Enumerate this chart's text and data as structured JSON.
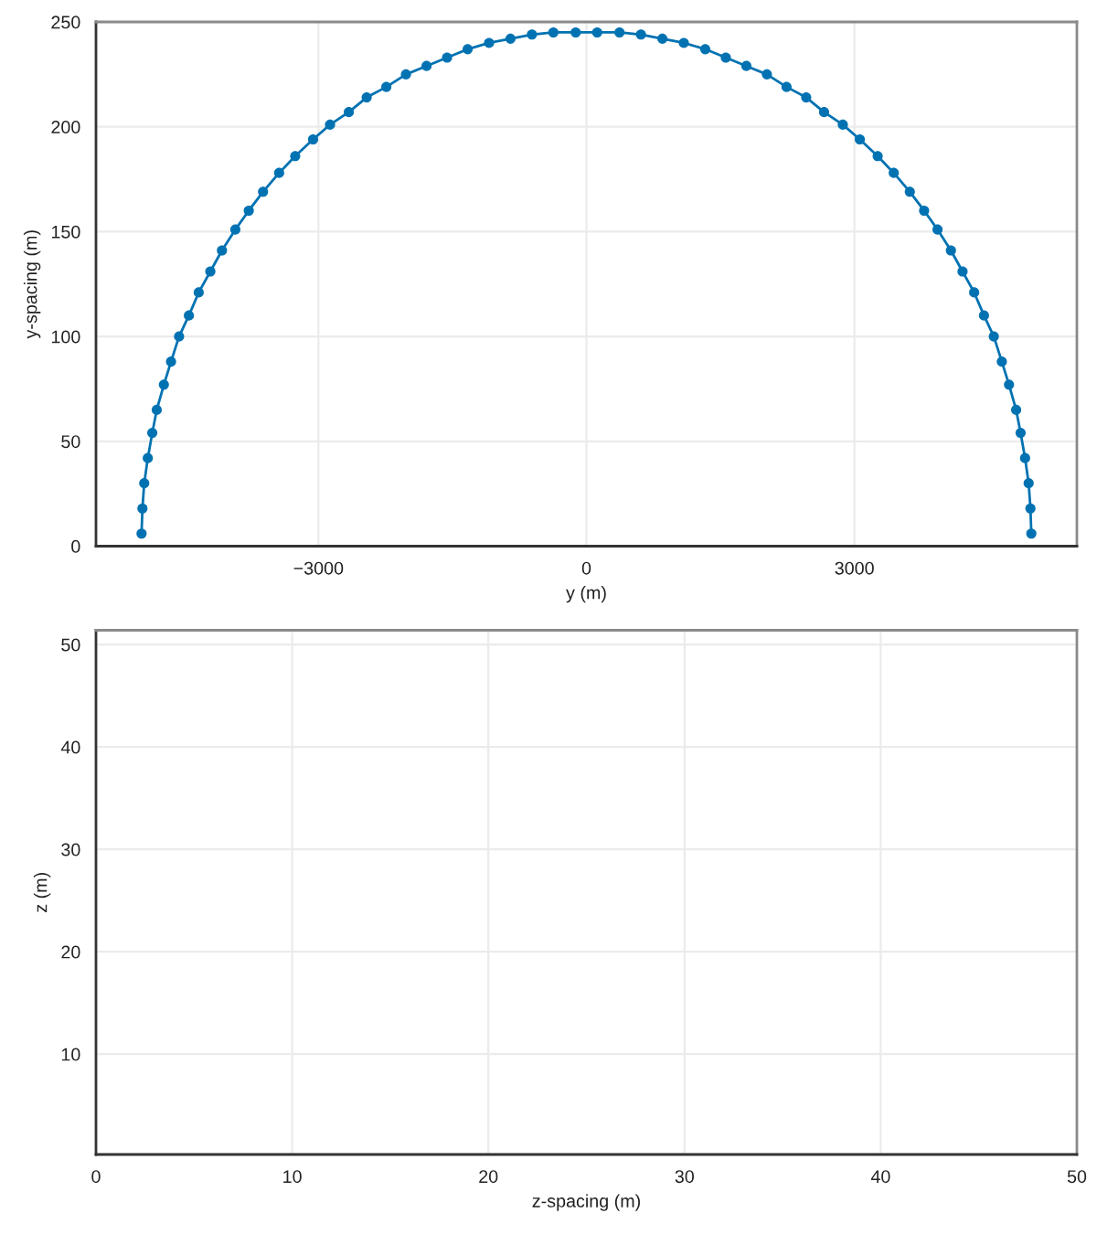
{
  "chart_data": [
    {
      "type": "line",
      "xlabel": "y (m)",
      "ylabel": "y-spacing (m)",
      "x": [
        -4980,
        -4970,
        -4950,
        -4910,
        -4860,
        -4810,
        -4730,
        -4650,
        -4560,
        -4450,
        -4340,
        -4210,
        -4080,
        -3930,
        -3780,
        -3620,
        -3440,
        -3260,
        -3060,
        -2870,
        -2660,
        -2460,
        -2240,
        -2020,
        -1790,
        -1560,
        -1330,
        -1090,
        -850,
        -610,
        -370,
        -120,
        120,
        370,
        610,
        850,
        1090,
        1330,
        1560,
        1790,
        2020,
        2240,
        2460,
        2660,
        2870,
        3060,
        3260,
        3440,
        3620,
        3780,
        3930,
        4080,
        4210,
        4340,
        4450,
        4560,
        4650,
        4730,
        4810,
        4860,
        4910,
        4950,
        4970,
        4980
      ],
      "series": [
        {
          "color": "#0072b2",
          "values": [
            6,
            18,
            30,
            42,
            54,
            65,
            77,
            88,
            100,
            110,
            121,
            131,
            141,
            151,
            160,
            169,
            178,
            186,
            194,
            201,
            207,
            214,
            219,
            225,
            229,
            233,
            237,
            240,
            242,
            244,
            245,
            245,
            245,
            245,
            244,
            242,
            240,
            237,
            233,
            229,
            225,
            219,
            214,
            207,
            201,
            194,
            186,
            178,
            169,
            160,
            151,
            141,
            131,
            121,
            110,
            100,
            88,
            77,
            65,
            54,
            42,
            30,
            18,
            6
          ]
        }
      ],
      "xlim": [
        -5490,
        5490
      ],
      "xticks": [
        {
          "value": -3000,
          "label": "−3000"
        },
        0,
        3000
      ],
      "ylim": [
        0,
        250
      ],
      "yticks": [
        0,
        50,
        100,
        150,
        200,
        250
      ],
      "grid": true,
      "marker": "circle",
      "line_style": "solid"
    },
    {
      "type": "line",
      "xlabel": "z-spacing (m)",
      "ylabel": "z (m)",
      "xlim": [
        0,
        50
      ],
      "xticks": [
        0,
        10,
        20,
        30,
        40,
        50
      ],
      "ylim": [
        0.2,
        51.4
      ],
      "yticks": [
        10,
        20,
        30,
        40,
        50
      ],
      "grid": true
    }
  ]
}
